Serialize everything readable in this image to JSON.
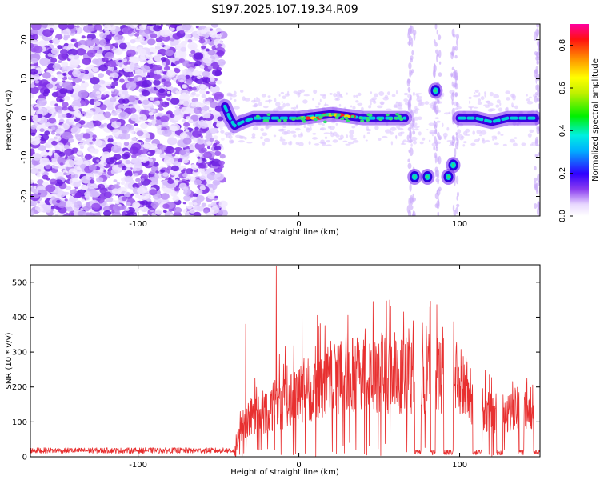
{
  "title": "S197.2025.107.19.34.R09",
  "chart_data": [
    {
      "type": "heatmap",
      "xlabel": "Height of straight line (km)",
      "ylabel": "Frequency (Hz)",
      "xlim": [
        -167,
        150
      ],
      "ylim": [
        -25,
        24
      ],
      "xticks": [
        -100,
        0,
        100
      ],
      "yticks": [
        20,
        10,
        0,
        -10,
        -20
      ],
      "noise_region_x": [
        -167,
        -47
      ],
      "signal_trace": [
        {
          "x": -46,
          "y": 3
        },
        {
          "x": -43,
          "y": 0
        },
        {
          "x": -40,
          "y": -2
        },
        {
          "x": -35,
          "y": -1
        },
        {
          "x": -28,
          "y": 0
        },
        {
          "x": -20,
          "y": 0
        },
        {
          "x": -10,
          "y": 0
        },
        {
          "x": 0,
          "y": 0
        },
        {
          "x": 10,
          "y": 0.5
        },
        {
          "x": 20,
          "y": 1
        },
        {
          "x": 30,
          "y": 0.5
        },
        {
          "x": 40,
          "y": 0
        },
        {
          "x": 50,
          "y": 0
        },
        {
          "x": 60,
          "y": 0
        },
        {
          "x": 66,
          "y": 0
        }
      ],
      "signal_trace_2": [
        {
          "x": 100,
          "y": 0
        },
        {
          "x": 110,
          "y": 0
        },
        {
          "x": 120,
          "y": -1
        },
        {
          "x": 130,
          "y": 0
        },
        {
          "x": 140,
          "y": 0
        },
        {
          "x": 147,
          "y": 0
        }
      ],
      "blobs": [
        {
          "x": 72,
          "y": -15
        },
        {
          "x": 80,
          "y": -15
        },
        {
          "x": 85,
          "y": 7
        },
        {
          "x": 93,
          "y": -15
        },
        {
          "x": 96,
          "y": -12
        }
      ],
      "colorbar": {
        "label": "Normalized spectral amplitude",
        "range": [
          0.0,
          0.9
        ],
        "ticks": [
          "0.0",
          "0.2",
          "0.4",
          "0.6",
          "0.8"
        ]
      }
    },
    {
      "type": "line",
      "xlabel": "Height of straight line (km)",
      "ylabel": "SNR (10 * v/v)",
      "xlim": [
        -167,
        150
      ],
      "ylim": [
        0,
        550
      ],
      "xticks": [
        -100,
        0,
        100
      ],
      "yticks": [
        0,
        100,
        200,
        300,
        400,
        500
      ],
      "color": "#e83030",
      "envelope": [
        {
          "x": -167,
          "y": 20
        },
        {
          "x": -50,
          "y": 20
        },
        {
          "x": -40,
          "y": 25
        },
        {
          "x": -35,
          "y": 120
        },
        {
          "x": -30,
          "y": 150
        },
        {
          "x": -20,
          "y": 170
        },
        {
          "x": -10,
          "y": 200
        },
        {
          "x": 0,
          "y": 230
        },
        {
          "x": 10,
          "y": 260
        },
        {
          "x": 20,
          "y": 290
        },
        {
          "x": 30,
          "y": 300
        },
        {
          "x": 40,
          "y": 300
        },
        {
          "x": 50,
          "y": 305
        },
        {
          "x": 60,
          "y": 310
        },
        {
          "x": 70,
          "y": 300
        },
        {
          "x": 80,
          "y": 310
        },
        {
          "x": 90,
          "y": 300
        },
        {
          "x": 100,
          "y": 280
        },
        {
          "x": 110,
          "y": 200
        },
        {
          "x": 120,
          "y": 160
        },
        {
          "x": 130,
          "y": 150
        },
        {
          "x": 140,
          "y": 200
        },
        {
          "x": 150,
          "y": 200
        }
      ],
      "dropouts": [
        [
          72,
          76
        ],
        [
          82,
          85
        ],
        [
          90,
          96
        ],
        [
          108,
          114
        ],
        [
          123,
          127
        ],
        [
          137,
          140
        ],
        [
          146,
          150
        ]
      ],
      "spikes": [
        {
          "x": -33,
          "y": 380
        },
        {
          "x": -14,
          "y": 545
        },
        {
          "x": 2,
          "y": 400
        }
      ]
    }
  ]
}
